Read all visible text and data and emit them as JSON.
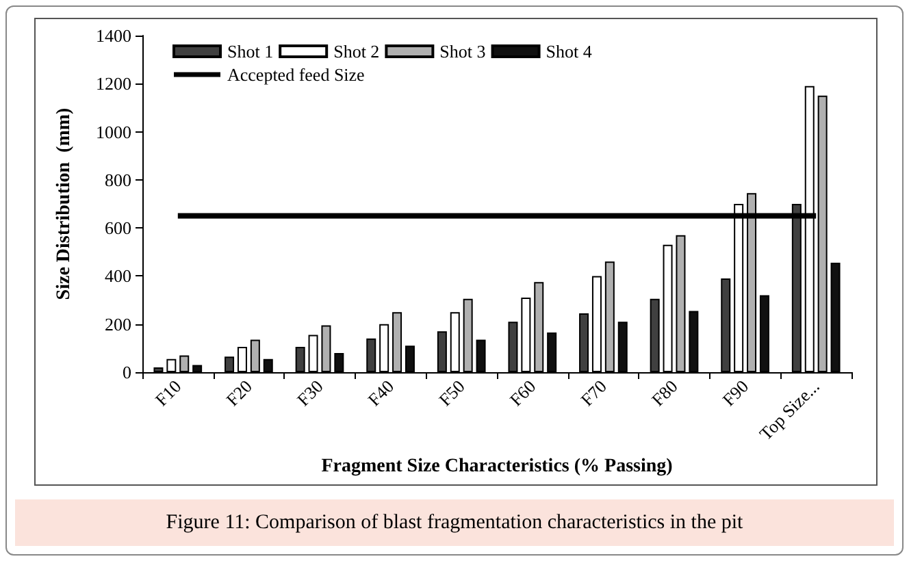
{
  "chart_data": {
    "type": "bar",
    "xlabel": "Fragment Size Characteristics (% Passing)",
    "ylabel": "Size Distribution  (mm)",
    "categories": [
      "F10",
      "F20",
      "F30",
      "F40",
      "F50",
      "F60",
      "F70",
      "F80",
      "F90",
      "Top Size..."
    ],
    "series": [
      {
        "name": "Shot 1",
        "color": "#404040",
        "values": [
          20,
          65,
          105,
          140,
          170,
          210,
          245,
          305,
          390,
          700
        ]
      },
      {
        "name": "Shot 2",
        "color": "#ffffff",
        "values": [
          55,
          105,
          155,
          200,
          250,
          310,
          400,
          530,
          700,
          1190
        ]
      },
      {
        "name": "Shot 3",
        "color": "#b0b0b0",
        "values": [
          70,
          135,
          195,
          250,
          305,
          375,
          460,
          570,
          745,
          1150
        ]
      },
      {
        "name": "Shot 4",
        "color": "#101010",
        "values": [
          30,
          55,
          80,
          110,
          135,
          165,
          210,
          255,
          320,
          455
        ]
      }
    ],
    "ref_lines": [
      {
        "axis": "y",
        "value": 650,
        "label": "Accepted feed Size",
        "color": "#000000"
      }
    ],
    "ylim": [
      0,
      1400
    ],
    "yticks": [
      0,
      200,
      400,
      600,
      800,
      1000,
      1200,
      1400
    ],
    "grid": false,
    "legend": "top left",
    "annotations": [
      "Figure 11: Comparison of blast fragmentation characteristics in the pit"
    ]
  }
}
